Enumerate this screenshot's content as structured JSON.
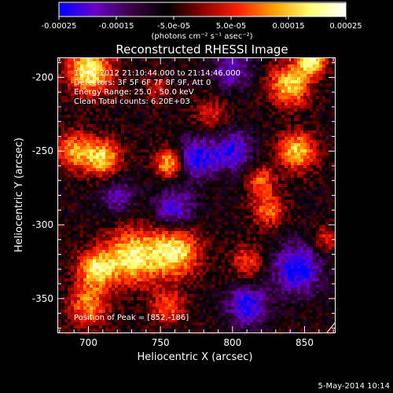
{
  "chart_data": {
    "type": "heatmap",
    "title": "Reconstructed RHESSI Image",
    "xlabel": "Heliocentric X (arcsec)",
    "ylabel": "Heliocentric Y (arcsec)",
    "xlim": [
      679,
      871
    ],
    "ylim": [
      -373,
      -187
    ],
    "xticks": [
      {
        "value": 700,
        "label": "700"
      },
      {
        "value": 750,
        "label": "750"
      },
      {
        "value": 800,
        "label": "800"
      },
      {
        "value": 850,
        "label": "850"
      }
    ],
    "yticks": [
      {
        "value": -200,
        "label": "-200"
      },
      {
        "value": -250,
        "label": "-250"
      },
      {
        "value": -300,
        "label": "-300"
      },
      {
        "value": -350,
        "label": "-350"
      }
    ],
    "colorbar": {
      "range": [
        -0.00025,
        0.00025
      ],
      "ticks": [
        {
          "value": -0.00025,
          "label": "-0.00025"
        },
        {
          "value": -0.00015,
          "label": "-0.00015"
        },
        {
          "value": -5e-05,
          "label": "-5.0e-05"
        },
        {
          "value": 5e-05,
          "label": "5.0e-05"
        },
        {
          "value": 0.00015,
          "label": "0.00015"
        },
        {
          "value": 0.00025,
          "label": "0.00025"
        }
      ],
      "unit_label": "(photons cm⁻² s⁻¹ asec⁻²)",
      "colormap": [
        "#0000ff",
        "#6a00c8",
        "#3c0046",
        "#000000",
        "#8b0000",
        "#ff2000",
        "#ffa000",
        "#ffff70",
        "#ffffff"
      ]
    },
    "annotations": [
      "18-Jul-2012 21:10:44.000 to 21:14:46.000",
      "Detectors: 3F 5F 6F 7F 8F 9F, Att 0",
      "Energy Range: 25.0 - 50.0 keV",
      "Clean    Total counts: 6.20E+03"
    ],
    "peak_label": "Position of Peak = [852,-186]",
    "sources": [
      {
        "x": 701,
        "y": -196,
        "sigma": 11,
        "amp": 0.00026
      },
      {
        "x": 690,
        "y": -250,
        "sigma": 9,
        "amp": 0.00018
      },
      {
        "x": 710,
        "y": -255,
        "sigma": 9,
        "amp": 0.00022
      },
      {
        "x": 756,
        "y": -258,
        "sigma": 7,
        "amp": 0.00022
      },
      {
        "x": 840,
        "y": -205,
        "sigma": 10,
        "amp": 0.00023
      },
      {
        "x": 855,
        "y": -188,
        "sigma": 7,
        "amp": 0.00026
      },
      {
        "x": 845,
        "y": -250,
        "sigma": 9,
        "amp": 0.00022
      },
      {
        "x": 820,
        "y": -270,
        "sigma": 7,
        "amp": 0.00015
      },
      {
        "x": 730,
        "y": -322,
        "sigma": 13,
        "amp": 0.00025
      },
      {
        "x": 760,
        "y": -318,
        "sigma": 12,
        "amp": 0.00025
      },
      {
        "x": 705,
        "y": -330,
        "sigma": 9,
        "amp": 0.00022
      },
      {
        "x": 700,
        "y": -355,
        "sigma": 10,
        "amp": 0.00017
      },
      {
        "x": 755,
        "y": -355,
        "sigma": 8,
        "amp": 0.00015
      },
      {
        "x": 810,
        "y": -325,
        "sigma": 8,
        "amp": 0.00013
      },
      {
        "x": 825,
        "y": -290,
        "sigma": 8,
        "amp": 0.00016
      },
      {
        "x": 785,
        "y": -225,
        "sigma": 8,
        "amp": 0.00011
      },
      {
        "x": 748,
        "y": -208,
        "sigma": 6,
        "amp": 9e-05
      },
      {
        "x": 865,
        "y": -310,
        "sigma": 6,
        "amp": 0.00012
      },
      {
        "x": 760,
        "y": -290,
        "sigma": 10,
        "amp": -0.00016
      },
      {
        "x": 775,
        "y": -255,
        "sigma": 10,
        "amp": -0.00018
      },
      {
        "x": 800,
        "y": -250,
        "sigma": 10,
        "amp": -0.00016
      },
      {
        "x": 845,
        "y": -330,
        "sigma": 12,
        "amp": -0.0002
      },
      {
        "x": 810,
        "y": -355,
        "sigma": 10,
        "amp": -0.00018
      },
      {
        "x": 800,
        "y": -195,
        "sigma": 10,
        "amp": -0.00013
      },
      {
        "x": 720,
        "y": -280,
        "sigma": 9,
        "amp": -0.00012
      }
    ]
  },
  "timestamp": "5-May-2014 10:14"
}
